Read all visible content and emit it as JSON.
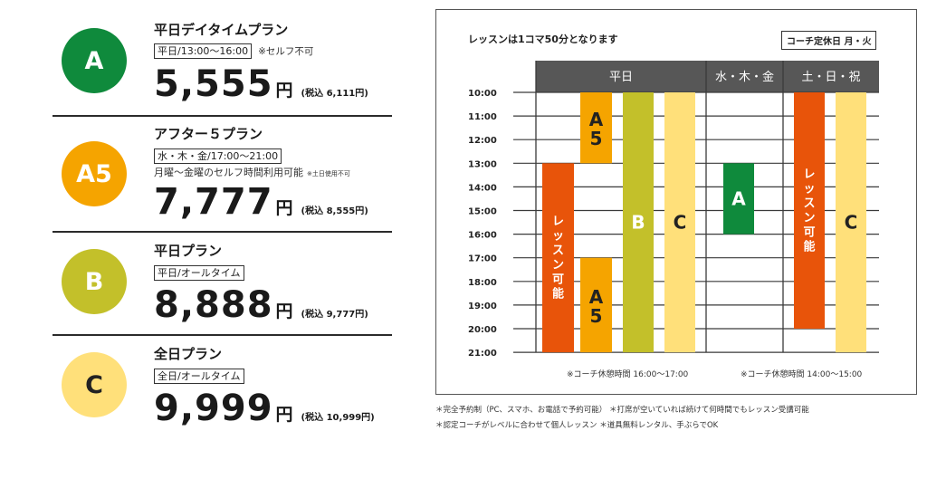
{
  "plans": [
    {
      "badge": "A",
      "color": "#0f8a3c",
      "name": "平日デイタイムプラン",
      "tag": "平日/13:00〜16:00",
      "tag_note": "※セルフ不可",
      "price": "5,555",
      "yen": "円",
      "tax": "(税込 6,111円)"
    },
    {
      "badge": "A5",
      "color": "#f5a400",
      "name": "アフター５プラン",
      "tag": "水・木・金/17:00〜21:00",
      "subnote": "月曜〜金曜のセルフ時間利用可能",
      "subnote_small": "※土日使用不可",
      "price": "7,777",
      "yen": "円",
      "tax": "(税込 8,555円)"
    },
    {
      "badge": "B",
      "color": "#c3c02a",
      "name": "平日プラン",
      "tag": "平日/オールタイム",
      "price": "8,888",
      "yen": "円",
      "tax": "(税込 9,777円)"
    },
    {
      "badge": "C",
      "color": "#ffe07a",
      "badge_text_color": "#222222",
      "name": "全日プラン",
      "tag": "全日/オールタイム",
      "price": "9,999",
      "yen": "円",
      "tax": "(税込 10,999円)"
    }
  ],
  "schedule": {
    "title": "レッスンは1コマ50分となります",
    "closed_label": "コーチ定休日 月・火",
    "times": [
      "10:00",
      "11:00",
      "12:00",
      "13:00",
      "14:00",
      "15:00",
      "16:00",
      "17:00",
      "18:00",
      "19:00",
      "20:00",
      "21:00"
    ],
    "columns": [
      "平日",
      "水・木・金",
      "土・日・祝"
    ],
    "note_weekday": "※コーチ休憩時間 16:00〜17:00",
    "note_weekend": "※コーチ休憩時間 14:00〜15:00",
    "colors": {
      "A": "#0f8a3c",
      "A5": "#f5a400",
      "B": "#c3c02a",
      "C": "#ffe07a",
      "lesson": "#e8540a",
      "header": "#575757"
    },
    "bars": [
      {
        "label": "レッスン可能",
        "color_key": "lesson",
        "start": 13,
        "end": 21,
        "section": "weekday",
        "slot": 0
      },
      {
        "label": "A5",
        "color_key": "A5",
        "start": 10,
        "end": 13,
        "section": "weekday",
        "slot": 1
      },
      {
        "label": "A5",
        "color_key": "A5",
        "start": 17,
        "end": 21,
        "section": "weekday",
        "slot": 1
      },
      {
        "label": "B",
        "color_key": "B",
        "start": 10,
        "end": 21,
        "section": "weekday",
        "slot": 2
      },
      {
        "label": "C",
        "color_key": "C",
        "start": 10,
        "end": 21,
        "section": "weekday",
        "slot": 3
      },
      {
        "label": "A",
        "color_key": "A",
        "start": 13,
        "end": 16,
        "section": "wtf",
        "slot": 0
      },
      {
        "label": "レッスン可能",
        "color_key": "lesson",
        "start": 10,
        "end": 20,
        "section": "weekend",
        "slot": 0
      },
      {
        "label": "C",
        "color_key": "C",
        "start": 10,
        "end": 21,
        "section": "weekend",
        "slot": 1
      }
    ]
  },
  "notes": [
    "＊完全予約制（PC、スマホ、お電話で予約可能） ＊打席が空いていれば続けて何時間でもレッスン受講可能",
    "＊認定コーチがレベルに合わせて個人レッスン ＊道具無料レンタル、手ぶらでOK"
  ]
}
